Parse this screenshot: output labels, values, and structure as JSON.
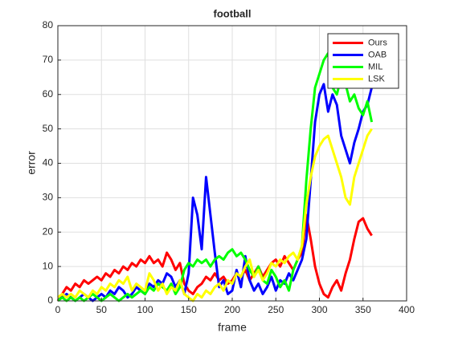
{
  "chart_data": {
    "type": "line",
    "title": "football",
    "xlabel": "frame",
    "ylabel": "error",
    "x": [
      0,
      5,
      10,
      15,
      20,
      25,
      30,
      35,
      40,
      45,
      50,
      55,
      60,
      65,
      70,
      75,
      80,
      85,
      90,
      95,
      100,
      105,
      110,
      115,
      120,
      125,
      130,
      135,
      140,
      145,
      150,
      155,
      160,
      165,
      170,
      175,
      180,
      185,
      190,
      195,
      200,
      205,
      210,
      215,
      220,
      225,
      230,
      235,
      240,
      245,
      250,
      255,
      260,
      265,
      270,
      275,
      280,
      285,
      290,
      295,
      300,
      305,
      310,
      315,
      320,
      325,
      330,
      335,
      340,
      345,
      350,
      355,
      360
    ],
    "series": [
      {
        "name": "Ours",
        "color": "#ff0000",
        "values": [
          0,
          2,
          4,
          3,
          5,
          4,
          6,
          5,
          6,
          7,
          6,
          8,
          7,
          9,
          8,
          10,
          9,
          11,
          10,
          12,
          11,
          13,
          11,
          12,
          10,
          14,
          12,
          9,
          11,
          5,
          3,
          2,
          4,
          5,
          7,
          6,
          8,
          6,
          7,
          5,
          6,
          8,
          7,
          9,
          6,
          8,
          10,
          7,
          9,
          11,
          12,
          10,
          13,
          11,
          9,
          12,
          14,
          25,
          18,
          10,
          5,
          2,
          1,
          4,
          6,
          3,
          8,
          12,
          18,
          23,
          24,
          21,
          19
        ]
      },
      {
        "name": "OAB",
        "color": "#0000ff",
        "values": [
          1,
          1,
          2,
          1,
          0,
          1,
          2,
          1,
          0,
          1,
          2,
          1,
          3,
          2,
          4,
          3,
          1,
          2,
          4,
          3,
          2,
          5,
          4,
          6,
          5,
          8,
          7,
          4,
          6,
          2,
          8,
          30,
          25,
          15,
          36,
          25,
          14,
          4,
          6,
          2,
          3,
          9,
          4,
          13,
          6,
          3,
          5,
          2,
          4,
          7,
          3,
          6,
          5,
          8,
          6,
          9,
          12,
          18,
          35,
          52,
          60,
          63,
          55,
          60,
          57,
          48,
          44,
          40,
          46,
          50,
          55,
          57,
          62
        ]
      },
      {
        "name": "MIL",
        "color": "#00ff00",
        "values": [
          0,
          1,
          0,
          1,
          0,
          1,
          0,
          1,
          2,
          1,
          0,
          1,
          2,
          1,
          0,
          1,
          2,
          1,
          2,
          3,
          2,
          4,
          3,
          5,
          4,
          3,
          5,
          2,
          4,
          9,
          11,
          10,
          12,
          11,
          12,
          10,
          12,
          13,
          12,
          14,
          15,
          13,
          14,
          12,
          9,
          7,
          10,
          6,
          5,
          9,
          7,
          4,
          6,
          3,
          9,
          12,
          16,
          35,
          50,
          62,
          66,
          70,
          72,
          62,
          60,
          65,
          63,
          58,
          60,
          56,
          54,
          58,
          52
        ]
      },
      {
        "name": "LSK",
        "color": "#ffff00",
        "values": [
          1,
          2,
          1,
          2,
          1,
          3,
          2,
          1,
          3,
          2,
          4,
          3,
          5,
          4,
          6,
          5,
          7,
          3,
          5,
          4,
          3,
          8,
          6,
          3,
          5,
          2,
          4,
          3,
          6,
          2,
          1,
          0,
          2,
          1,
          3,
          2,
          4,
          5,
          3,
          6,
          5,
          8,
          7,
          10,
          12,
          7,
          9,
          6,
          8,
          11,
          10,
          12,
          11,
          13,
          14,
          12,
          16,
          28,
          36,
          42,
          45,
          47,
          48,
          44,
          40,
          36,
          30,
          28,
          36,
          40,
          44,
          48,
          50
        ]
      }
    ],
    "xlim": [
      0,
      400
    ],
    "xticks": [
      0,
      50,
      100,
      150,
      200,
      250,
      300,
      350,
      400
    ],
    "ylim": [
      0,
      80
    ],
    "yticks": [
      0,
      10,
      20,
      30,
      40,
      50,
      60,
      70,
      80
    ],
    "grid": true,
    "legend": "northeast"
  }
}
